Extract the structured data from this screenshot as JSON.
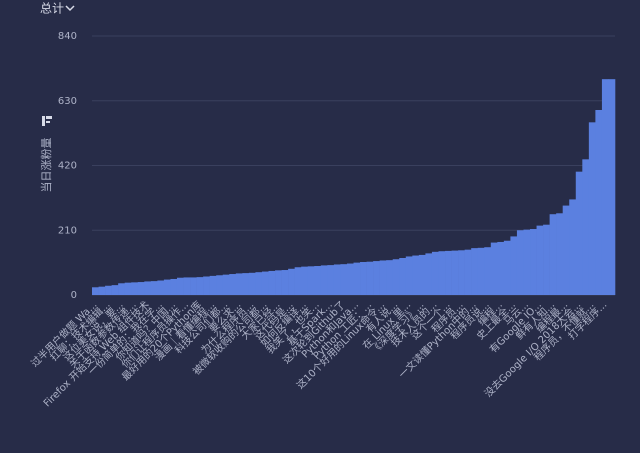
{
  "selector": "总计",
  "chart_data": {
    "type": "bar",
    "ylabel": "当日涨粉量",
    "color": "#5b80e0",
    "ylim": [
      0,
      840
    ],
    "yticks": [
      0,
      210,
      420,
      630,
      840
    ],
    "grid": true,
    "categories": [
      "过半用户做题 Wa...",
      null,
      "扛聊：技术编辑...",
      null,
      "这位美女说，要...",
      null,
      "关于函数参数传递...",
      null,
      "Firefox 开始支持 Web 组件技术",
      null,
      "一份简单的：我在学...",
      null,
      "你知道吗？中国...",
      null,
      "你们让程序员操作...",
      null,
      "最好用的20个Python库",
      null,
      "漫画｜看懂编程...",
      null,
      "科技公司们都...",
      null,
      "要么求...",
      null,
      "为什么程序员...",
      null,
      "被微软收购的公司都...",
      null,
      "大家已经...",
      null,
      "这代码是...",
      null,
      "如何反编译...",
      null,
      "我笑了，也笑...",
      null,
      "基于Spark...",
      null,
      "这次轮到Github了",
      null,
      "Python和Java...",
      null,
      "Python 工匠：...",
      null,
      "这10个好用的Linux命令...",
      null,
      "有人说...",
      null,
      "在 Linux 里...",
      null,
      "《深度学习》...",
      null,
      "技术人员的...",
      null,
      "这个一个...",
      null,
      "程序员...",
      null,
      "一文读懂Python中的...",
      null,
      "程序员说...",
      null,
      "编程...",
      null,
      "史上最全...",
      null,
      "马云...",
      null,
      "有Google IO...",
      null,
      "鲜有人知...",
      null,
      "编程最...",
      null,
      "没去Google I/O 2018大会...",
      null,
      "程序员，不懂就...",
      null,
      "打字程序...",
      null
    ],
    "values": [
      25,
      27,
      30,
      32,
      38,
      40,
      41,
      42,
      44,
      45,
      47,
      50,
      52,
      56,
      57,
      57,
      58,
      60,
      62,
      64,
      66,
      68,
      70,
      71,
      72,
      74,
      76,
      78,
      80,
      81,
      85,
      90,
      92,
      93,
      94,
      96,
      97,
      99,
      100,
      102,
      105,
      107,
      108,
      110,
      112,
      113,
      116,
      120,
      125,
      128,
      130,
      135,
      140,
      142,
      143,
      144,
      145,
      147,
      152,
      153,
      155,
      170,
      172,
      176,
      190,
      210,
      212,
      214,
      225,
      228,
      262,
      265,
      290,
      310,
      400,
      440,
      560,
      600,
      700,
      700
    ]
  }
}
